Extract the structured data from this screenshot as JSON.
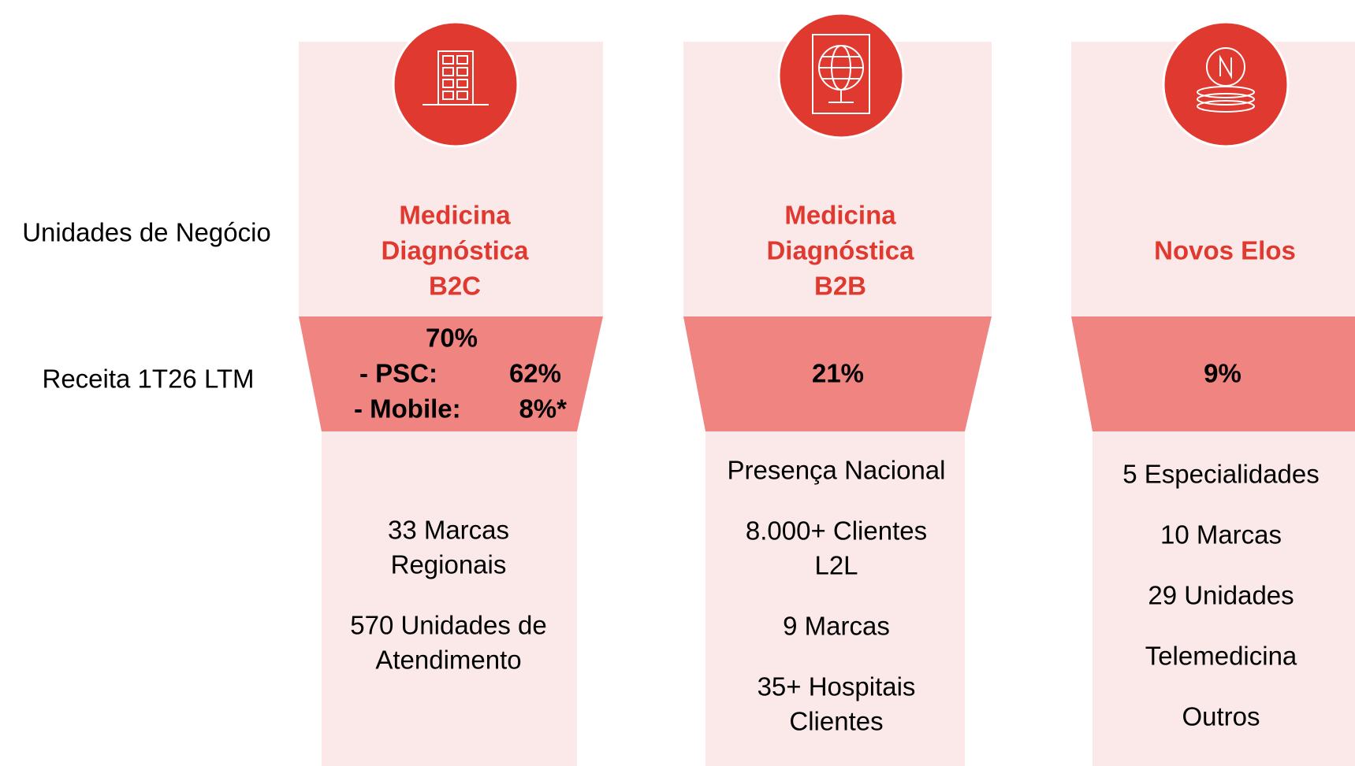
{
  "row_labels": [
    "Unidades de Negócio",
    "Receita 1T26 LTM"
  ],
  "columns": [
    {
      "title": [
        "Medicina",
        "Diagnóstica",
        "B2C"
      ],
      "revenue": {
        "total": "70%",
        "breakdown": [
          {
            "label": "- PSC:",
            "value": "62%"
          },
          {
            "label": "- Mobile:",
            "value": "8%*"
          }
        ]
      },
      "items": [
        [
          "33 Marcas",
          "Regionais"
        ],
        [
          "570 Unidades de",
          "Atendimento"
        ]
      ]
    },
    {
      "title": [
        "Medicina",
        "Diagnóstica",
        "B2B"
      ],
      "revenue": {
        "total": "21%"
      },
      "items": [
        [
          "Presença Nacional"
        ],
        [
          "8.000+ Clientes",
          "L2L"
        ],
        [
          "9 Marcas"
        ],
        [
          "35+ Hospitais",
          "Clientes"
        ]
      ]
    },
    {
      "title": [
        "Novos Elos"
      ],
      "revenue": {
        "total": "9%"
      },
      "items": [
        [
          "5 Especialidades"
        ],
        [
          "10 Marcas"
        ],
        [
          "29 Unidades"
        ],
        [
          "Telemedicina"
        ],
        [
          "Outros"
        ]
      ]
    }
  ]
}
